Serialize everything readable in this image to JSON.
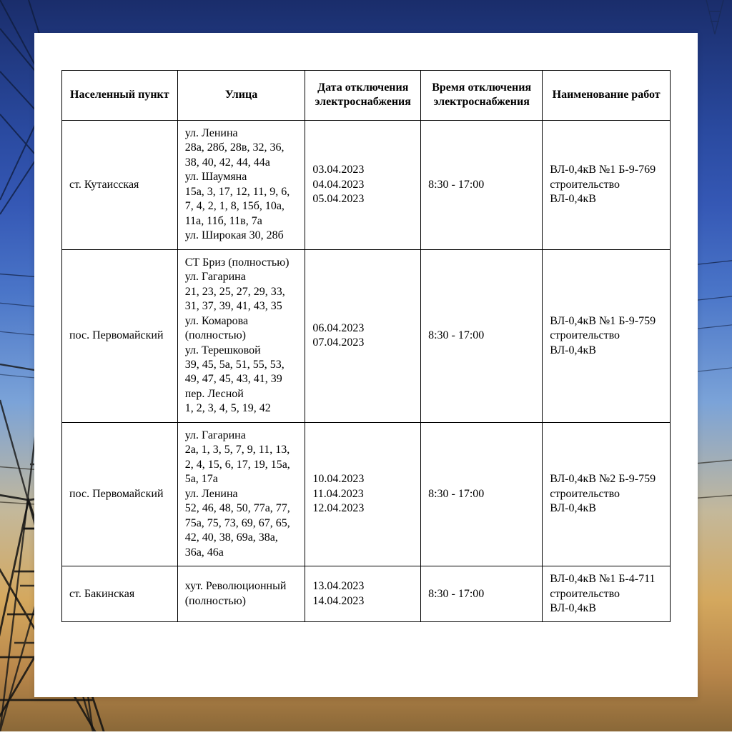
{
  "background": {
    "gradient_stops": [
      "#1a2d6b",
      "#2a4aa0",
      "#3558b5",
      "#4a75c8",
      "#7ba3d8",
      "#c4b89a",
      "#d4a85e",
      "#b8864a",
      "#8a6838"
    ]
  },
  "table": {
    "columns": [
      "Населенный пункт",
      "Улица",
      "Дата отключения электроснабжения",
      "Время отключения электроснабжения",
      "Наименование работ"
    ],
    "column_widths_pct": [
      19,
      21,
      19,
      20,
      21
    ],
    "border_color": "#000000",
    "font_family": "Times New Roman",
    "header_fontsize": 16,
    "cell_fontsize": 16,
    "rows": [
      {
        "location": "ст. Кутаисская",
        "street": "ул. Ленина\n28а, 28б, 28в, 32, 36, 38, 40, 42, 44, 44а\nул. Шаумяна\n15а, 3, 17, 12, 11, 9, 6, 7, 4, 2, 1, 8, 15б, 10а, 11а, 11б, 11в, 7а\nул. Широкая 30, 28б",
        "date": "03.04.2023\n04.04.2023\n05.04.2023",
        "time": "8:30 - 17:00",
        "work": "ВЛ-0,4кВ №1 Б-9-769 строительство ВЛ-0,4кВ"
      },
      {
        "location": "пос. Первомайский",
        "street": "СТ Бриз (полностью)\nул. Гагарина\n21, 23, 25, 27, 29, 33, 31, 37, 39, 41, 43, 35\nул. Комарова (полностью)\nул. Терешковой\n39, 45, 5а, 51, 55, 53, 49, 47, 45, 43, 41, 39\nпер. Лесной\n1, 2, 3, 4, 5, 19, 42",
        "date": "06.04.2023\n07.04.2023",
        "time": "8:30 - 17:00",
        "work": "ВЛ-0,4кВ №1 Б-9-759 строительство ВЛ-0,4кВ"
      },
      {
        "location": "пос. Первомайский",
        "street": "ул. Гагарина\n2а, 1, 3, 5, 7, 9, 11, 13, 2, 4, 15, 6, 17, 19, 15а, 5а, 17а\nул. Ленина\n52, 46, 48, 50, 77а, 77, 75а, 75, 73, 69, 67, 65, 42, 40, 38, 69а, 38а, 36а, 46а",
        "date": "10.04.2023\n11.04.2023\n12.04.2023",
        "time": "8:30 - 17:00",
        "work": "ВЛ-0,4кВ №2 Б-9-759 строительство ВЛ-0,4кВ"
      },
      {
        "location": "ст. Бакинская",
        "street": "хут. Революционный (полностью)",
        "date": "13.04.2023\n14.04.2023",
        "time": "8:30 - 17:00",
        "work": "ВЛ-0,4кВ №1 Б-4-711 строительство ВЛ-0,4кВ"
      }
    ]
  }
}
